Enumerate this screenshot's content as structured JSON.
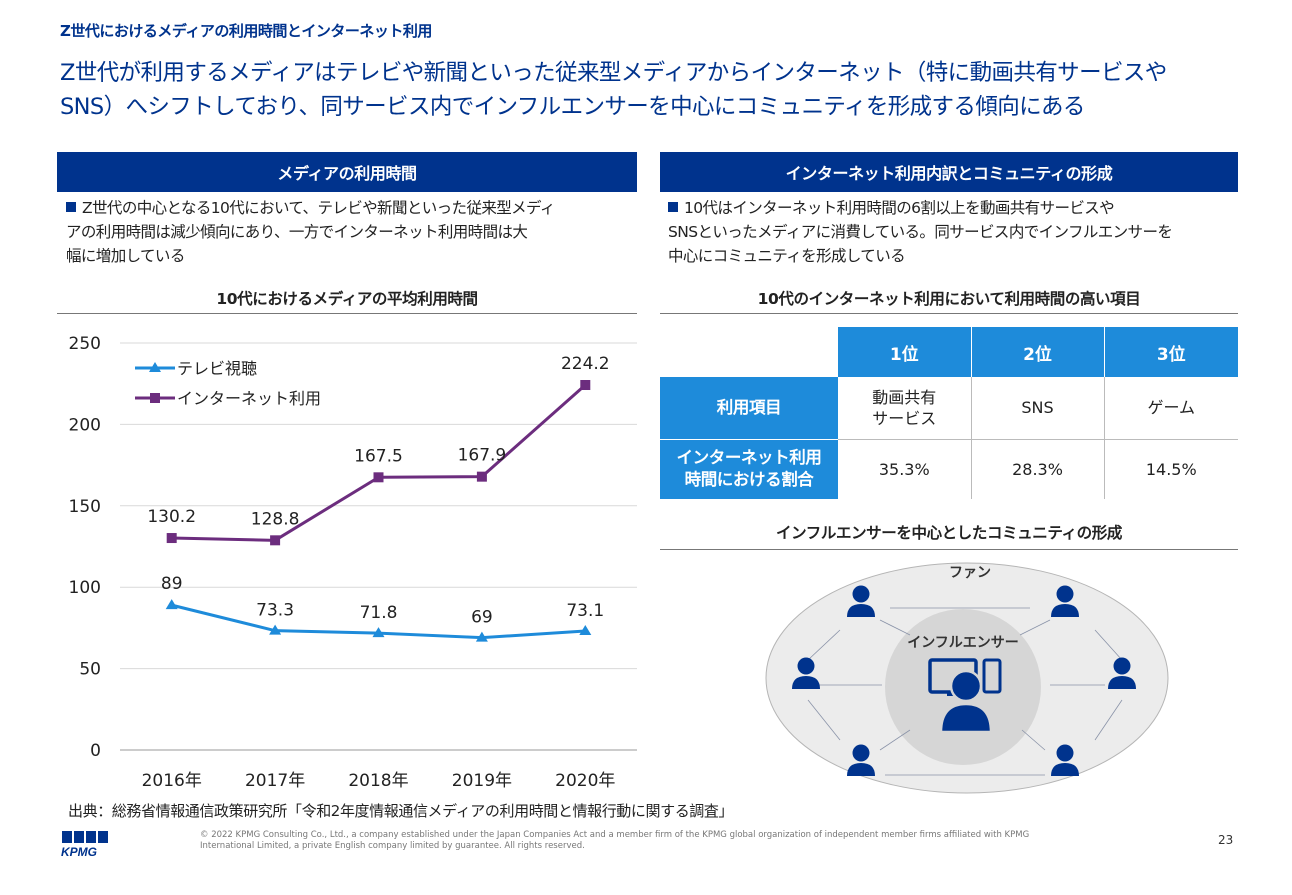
{
  "header": {
    "kicker": "Z世代におけるメディアの利用時間とインターネット利用",
    "headline_line1": "Z世代が利用するメディアはテレビや新聞といった従来型メディアからインターネット（特に動画共有サービスや",
    "headline_line2": "SNS）へシフトしており、同サービス内でインフルエンサーを中心にコミュニティを形成する傾向にある"
  },
  "left": {
    "section_title": "メディアの利用時間",
    "bullet_line1": "Z世代の中心となる10代において、テレビや新聞といった従来型メディ",
    "bullet_line2": "アの利用時間は減少傾向にあり、一方でインターネット利用時間は大",
    "bullet_line3": "幅に増加している",
    "chart_title": "10代におけるメディアの平均利用時間"
  },
  "right": {
    "section_title": "インターネット利用内訳とコミュニティの形成",
    "bullet_line1": "10代はインターネット利用時間の6割以上を動画共有サービスや",
    "bullet_line2": "SNSといったメディアに消費している。同サービス内でインフルエンサーを",
    "bullet_line3": "中心にコミュニティを形成している",
    "table_title": "10代のインターネット利用において利用時間の高い項目",
    "table": {
      "col_headers": [
        "1位",
        "2位",
        "3位"
      ],
      "row1_header": "利用項目",
      "row1_values": [
        "動画共有\nサービス",
        "SNS",
        "ゲーム"
      ],
      "row2_header_line1": "インターネット利用",
      "row2_header_line2": "時間における割合",
      "row2_values": [
        "35.3%",
        "28.3%",
        "14.5%"
      ]
    },
    "community_title": "インフルエンサーを中心としたコミュニティの形成",
    "community": {
      "fan_label": "ファン",
      "influencer_label": "インフルエンサー"
    }
  },
  "chart_data": {
    "type": "line",
    "title": "10代におけるメディアの平均利用時間",
    "categories": [
      "2016年",
      "2017年",
      "2018年",
      "2019年",
      "2020年"
    ],
    "series": [
      {
        "name": "テレビ視聴",
        "values": [
          89,
          73.3,
          71.8,
          69,
          73.1
        ],
        "color": "#1E8BDA",
        "marker": "triangle"
      },
      {
        "name": "インターネット利用",
        "values": [
          130.2,
          128.8,
          167.5,
          167.9,
          224.2
        ],
        "color": "#6C2D7E",
        "marker": "square"
      }
    ],
    "ylim": [
      0,
      250
    ],
    "yticks": [
      0,
      50,
      100,
      150,
      200,
      250
    ],
    "grid": true,
    "legend": "top-left"
  },
  "footer": {
    "source": "出典：総務省情報通信政策研究所「令和2年度情報通信メディアの利用時間と情報行動に関する調査」",
    "copyright_line1": "© 2022 KPMG Consulting Co., Ltd., a company established under the Japan Companies Act and a member firm of the KPMG global organization of independent member firms affiliated with KPMG",
    "copyright_line2": "International Limited, a private English company limited by guarantee. All rights reserved.",
    "page_number": "23",
    "logo_text": "KPMG"
  },
  "colors": {
    "brand": "#00338D",
    "accent": "#1E8BDA",
    "internet": "#6C2D7E"
  }
}
